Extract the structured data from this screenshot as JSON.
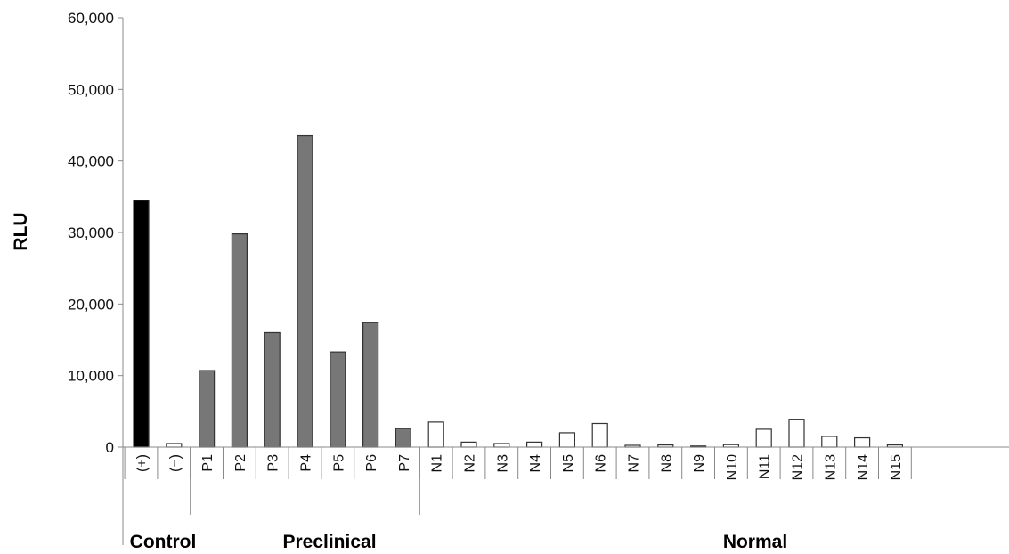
{
  "chart_data": {
    "type": "bar",
    "ylabel": "RLU",
    "xlabel": "",
    "ylim": [
      0,
      60000
    ],
    "yticks": [
      0,
      10000,
      20000,
      30000,
      40000,
      50000,
      60000
    ],
    "ytick_labels": [
      "0",
      "10,000",
      "20,000",
      "30,000",
      "40,000",
      "50,000",
      "60,000"
    ],
    "grid": false,
    "categories": [
      "(+)",
      "(−)",
      "P1",
      "P2",
      "P3",
      "P4",
      "P5",
      "P6",
      "P7",
      "N1",
      "N2",
      "N3",
      "N4",
      "N5",
      "N6",
      "N7",
      "N8",
      "N9",
      "N10",
      "N11",
      "N12",
      "N13",
      "N14",
      "N15"
    ],
    "values": [
      34500,
      500,
      10700,
      29800,
      16000,
      43500,
      13300,
      17400,
      2600,
      3500,
      700,
      500,
      700,
      2000,
      3300,
      250,
      300,
      150,
      350,
      2500,
      3900,
      1500,
      1300,
      300
    ],
    "bar_group": [
      "control",
      "control",
      "preclinical",
      "preclinical",
      "preclinical",
      "preclinical",
      "preclinical",
      "preclinical",
      "preclinical",
      "normal",
      "normal",
      "normal",
      "normal",
      "normal",
      "normal",
      "normal",
      "normal",
      "normal",
      "normal",
      "normal",
      "normal",
      "normal",
      "normal",
      "normal"
    ],
    "groups": [
      {
        "key": "control",
        "label": "Control",
        "count": 2
      },
      {
        "key": "preclinical",
        "label": "Preclinical",
        "count": 7
      },
      {
        "key": "normal",
        "label": "Normal",
        "count": 15
      }
    ],
    "colors": {
      "control_positive": "#000000",
      "control_negative": "#ffffff",
      "preclinical": "#777777",
      "normal": "#ffffff",
      "outline": "#333333",
      "axis": "#888888"
    }
  }
}
